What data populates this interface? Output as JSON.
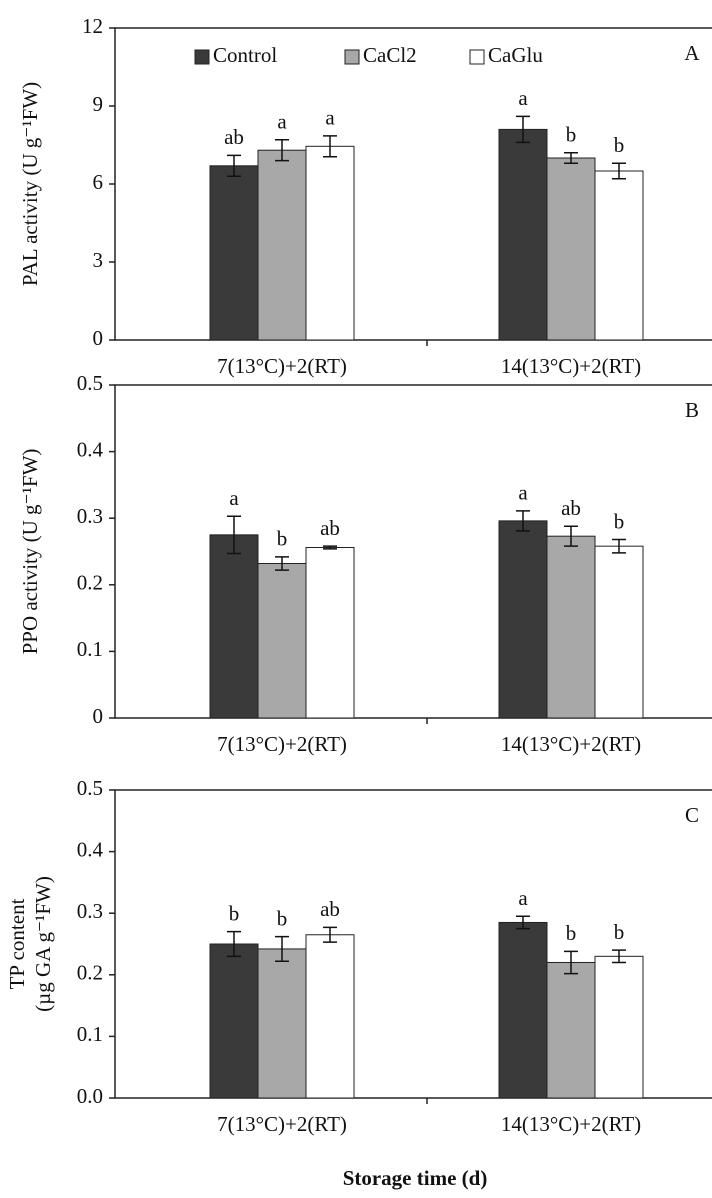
{
  "chart_data": [
    {
      "type": "bar",
      "panel": "A",
      "ylabel": [
        "PAL activity (U g⁻¹FW)"
      ],
      "categories": [
        "7(13°C)+2(RT)",
        "14(13°C)+2(RT)"
      ],
      "ylim": [
        0,
        12
      ],
      "yticks": [
        0,
        3,
        6,
        9,
        12
      ],
      "legend": "top-left",
      "series": [
        {
          "name": "Control",
          "color": "#3a3a3a",
          "values": [
            6.7,
            8.1
          ],
          "errors": [
            0.4,
            0.5
          ],
          "letters": [
            "ab",
            "a"
          ]
        },
        {
          "name": "CaCl2",
          "color": "#a8a8a8",
          "values": [
            7.3,
            7.0
          ],
          "errors": [
            0.4,
            0.2
          ],
          "letters": [
            "a",
            "b"
          ]
        },
        {
          "name": "CaGlu",
          "color": "#ffffff",
          "values": [
            7.45,
            6.5
          ],
          "errors": [
            0.4,
            0.3
          ],
          "letters": [
            "a",
            "b"
          ]
        }
      ]
    },
    {
      "type": "bar",
      "panel": "B",
      "ylabel": [
        "PPO activity (U g⁻¹FW)"
      ],
      "categories": [
        "7(13°C)+2(RT)",
        "14(13°C)+2(RT)"
      ],
      "ylim": [
        0,
        0.5
      ],
      "yticks": [
        0,
        0.1,
        0.2,
        0.3,
        0.4,
        0.5
      ],
      "series": [
        {
          "color": "#3a3a3a",
          "values": [
            0.275,
            0.296
          ],
          "errors": [
            0.028,
            0.015
          ],
          "letters": [
            "a",
            "a"
          ]
        },
        {
          "color": "#a8a8a8",
          "values": [
            0.232,
            0.273
          ],
          "errors": [
            0.01,
            0.015
          ],
          "letters": [
            "b",
            "ab"
          ]
        },
        {
          "color": "#ffffff",
          "values": [
            0.256,
            0.258
          ],
          "errors": [
            0.002,
            0.01
          ],
          "letters": [
            "ab",
            "b"
          ]
        }
      ]
    },
    {
      "type": "bar",
      "panel": "C",
      "ylabel": [
        "TP content",
        "(µg GA g⁻¹FW)"
      ],
      "categories": [
        "7(13°C)+2(RT)",
        "14(13°C)+2(RT)"
      ],
      "xlabel": "Storage time (d)",
      "ylim": [
        0,
        0.5
      ],
      "yticks": [
        {
          "value": 0,
          "label": "0.0"
        },
        0.1,
        0.2,
        0.3,
        0.4,
        0.5
      ],
      "series": [
        {
          "color": "#3a3a3a",
          "values": [
            0.25,
            0.285
          ],
          "errors": [
            0.02,
            0.01
          ],
          "letters": [
            "b",
            "a"
          ]
        },
        {
          "color": "#a8a8a8",
          "values": [
            0.242,
            0.22
          ],
          "errors": [
            0.02,
            0.018
          ],
          "letters": [
            "b",
            "b"
          ]
        },
        {
          "color": "#ffffff",
          "values": [
            0.265,
            0.23
          ],
          "errors": [
            0.012,
            0.01
          ],
          "letters": [
            "ab",
            "b"
          ]
        }
      ]
    }
  ]
}
